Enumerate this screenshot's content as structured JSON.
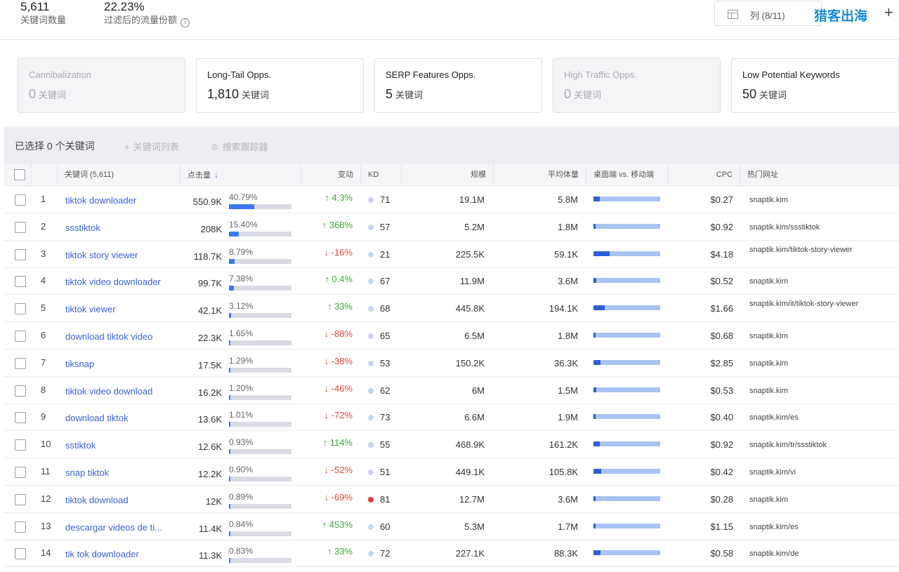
{
  "summary": {
    "keywords_count": "5,611",
    "keywords_label": "关键词数量",
    "traffic_share": "22.23%",
    "traffic_share_label": "过滤后的流量份额"
  },
  "toolbar": {
    "columns_label": "列 (8/11)",
    "watermark": "猎客出海",
    "add_label": "+"
  },
  "cards": [
    {
      "title": "Cannibalization",
      "count": "0",
      "unit": "关键词",
      "disabled": true
    },
    {
      "title": "Long-Tail Opps.",
      "count": "1,810",
      "unit": "关键词",
      "disabled": false
    },
    {
      "title": "SERP Features Opps.",
      "count": "5",
      "unit": "关键词",
      "disabled": false
    },
    {
      "title": "High Traffic Opps.",
      "count": "0",
      "unit": "关键词",
      "disabled": true
    },
    {
      "title": "Low Potential Keywords",
      "count": "50",
      "unit": "关键词",
      "disabled": false
    }
  ],
  "selection": {
    "selected_text": "已选择 0 个关键词",
    "keyword_list_label": "关键词列表",
    "rank_tracker_label": "搜索跟踪器"
  },
  "table": {
    "headers": {
      "keyword": "关键词 (5,611)",
      "clicks": "点击量",
      "change": "变动",
      "kd": "KD",
      "size": "规模",
      "avg_volume": "平均体量",
      "desktop_mobile": "桌面端 vs. 移动端",
      "cpc": "CPC",
      "top_url": "热门网址"
    },
    "rows": [
      {
        "num": "1",
        "keyword": "tiktok downloader",
        "clicks": "550.9K",
        "pct": "40.79%",
        "share": 0.4079,
        "change": "4.3%",
        "dir": "up",
        "kd": "71",
        "kd_red": false,
        "size": "19.1M",
        "avg": "5.8M",
        "desktop": 0.09,
        "cpc": "$0.27",
        "url": "snaptik.kim"
      },
      {
        "num": "2",
        "keyword": "ssstiktok",
        "clicks": "208K",
        "pct": "15.40%",
        "share": 0.154,
        "change": "368%",
        "dir": "up",
        "kd": "57",
        "kd_red": false,
        "size": "5.2M",
        "avg": "1.8M",
        "desktop": 0.03,
        "cpc": "$0.92",
        "url": "snaptik.kim/ssstiktok"
      },
      {
        "num": "3",
        "keyword": "tiktok story viewer",
        "clicks": "118.7K",
        "pct": "8.79%",
        "share": 0.0879,
        "change": "-16%",
        "dir": "down",
        "kd": "21",
        "kd_red": false,
        "size": "225.5K",
        "avg": "59.1K",
        "desktop": 0.24,
        "cpc": "$4.18",
        "url": "snaptik.kim/tiktok-story-viewer"
      },
      {
        "num": "4",
        "keyword": "tiktok video downloader",
        "clicks": "99.7K",
        "pct": "7.38%",
        "share": 0.0738,
        "change": "0.4%",
        "dir": "up",
        "kd": "67",
        "kd_red": false,
        "size": "11.9M",
        "avg": "3.6M",
        "desktop": 0.04,
        "cpc": "$0.52",
        "url": "snaptik.kim"
      },
      {
        "num": "5",
        "keyword": "tiktok viewer",
        "clicks": "42.1K",
        "pct": "3.12%",
        "share": 0.0312,
        "change": "33%",
        "dir": "up",
        "kd": "68",
        "kd_red": false,
        "size": "445.8K",
        "avg": "194.1K",
        "desktop": 0.17,
        "cpc": "$1.66",
        "url": "snaptik.kim/it/tiktok-story-viewer"
      },
      {
        "num": "6",
        "keyword": "download tiktok video",
        "clicks": "22.3K",
        "pct": "1.65%",
        "share": 0.0165,
        "change": "-88%",
        "dir": "down",
        "kd": "65",
        "kd_red": false,
        "size": "6.5M",
        "avg": "1.8M",
        "desktop": 0.03,
        "cpc": "$0.68",
        "url": "snaptik.kim"
      },
      {
        "num": "7",
        "keyword": "tiksnap",
        "clicks": "17.5K",
        "pct": "1.29%",
        "share": 0.0129,
        "change": "-38%",
        "dir": "down",
        "kd": "53",
        "kd_red": false,
        "size": "150.2K",
        "avg": "36.3K",
        "desktop": 0.1,
        "cpc": "$2.85",
        "url": "snaptik.kim"
      },
      {
        "num": "8",
        "keyword": "tiktok video download",
        "clicks": "16.2K",
        "pct": "1.20%",
        "share": 0.012,
        "change": "-46%",
        "dir": "down",
        "kd": "62",
        "kd_red": false,
        "size": "6M",
        "avg": "1.5M",
        "desktop": 0.04,
        "cpc": "$0.53",
        "url": "snaptik.kim"
      },
      {
        "num": "9",
        "keyword": "download tiktok",
        "clicks": "13.6K",
        "pct": "1.01%",
        "share": 0.0101,
        "change": "-72%",
        "dir": "down",
        "kd": "73",
        "kd_red": false,
        "size": "6.6M",
        "avg": "1.9M",
        "desktop": 0.03,
        "cpc": "$0.40",
        "url": "snaptik.kim/es"
      },
      {
        "num": "10",
        "keyword": "sstiktok",
        "clicks": "12.6K",
        "pct": "0.93%",
        "share": 0.0093,
        "change": "114%",
        "dir": "up",
        "kd": "55",
        "kd_red": false,
        "size": "468.9K",
        "avg": "161.2K",
        "desktop": 0.09,
        "cpc": "$0.92",
        "url": "snaptik.kim/tr/ssstiktok"
      },
      {
        "num": "11",
        "keyword": "snap tiktok",
        "clicks": "12.2K",
        "pct": "0.90%",
        "share": 0.009,
        "change": "-52%",
        "dir": "down",
        "kd": "51",
        "kd_red": false,
        "size": "449.1K",
        "avg": "105.8K",
        "desktop": 0.12,
        "cpc": "$0.42",
        "url": "snaptik.kim/vi"
      },
      {
        "num": "12",
        "keyword": "tiktok download",
        "clicks": "12K",
        "pct": "0.89%",
        "share": 0.0089,
        "change": "-69%",
        "dir": "down",
        "kd": "81",
        "kd_red": true,
        "size": "12.7M",
        "avg": "3.6M",
        "desktop": 0.03,
        "cpc": "$0.28",
        "url": "snaptik.kim"
      },
      {
        "num": "13",
        "keyword": "descargar videos de ti...",
        "clicks": "11.4K",
        "pct": "0.84%",
        "share": 0.0084,
        "change": "453%",
        "dir": "up",
        "kd": "60",
        "kd_red": false,
        "size": "5.3M",
        "avg": "1.7M",
        "desktop": 0.03,
        "cpc": "$1.15",
        "url": "snaptik.kim/es"
      },
      {
        "num": "14",
        "keyword": "tik tok downloader",
        "clicks": "11.3K",
        "pct": "0.83%",
        "share": 0.0083,
        "change": "33%",
        "dir": "up",
        "kd": "72",
        "kd_red": false,
        "size": "227.1K",
        "avg": "88.3K",
        "desktop": 0.11,
        "cpc": "$0.58",
        "url": "snaptik.kim/de"
      }
    ]
  }
}
